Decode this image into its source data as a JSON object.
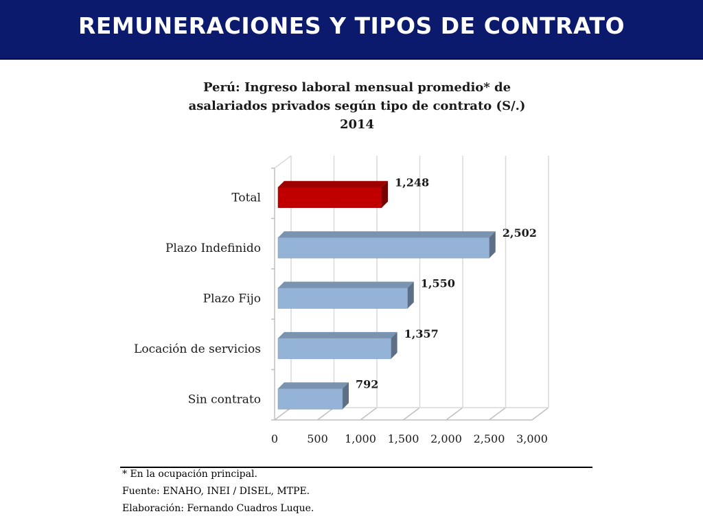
{
  "header": {
    "title": "REMUNERACIONES Y TIPOS DE CONTRATO"
  },
  "colors": {
    "header_bg": "#0c1a6e",
    "bar_default": "#95b3d7",
    "bar_highlight": "#c00000"
  },
  "chart_data": {
    "type": "bar",
    "orientation": "horizontal",
    "title_lines": [
      "Perú: Ingreso laboral mensual promedio* de",
      "asalariados privados según tipo de contrato (S/.)",
      "2014"
    ],
    "categories": [
      "Total",
      "Plazo Indefinido",
      "Plazo Fijo",
      "Locación de servicios",
      "Sin contrato"
    ],
    "values": [
      1248,
      2502,
      1550,
      1357,
      792
    ],
    "value_labels": [
      "1,248",
      "2,502",
      "1,550",
      "1,357",
      "792"
    ],
    "highlight": "Total",
    "xlim": [
      0,
      3000
    ],
    "x_ticks": [
      0,
      500,
      1000,
      1500,
      2000,
      2500,
      3000
    ],
    "x_tick_labels": [
      "0",
      "500",
      "1,000",
      "1,500",
      "2,000",
      "2,500",
      "3,000"
    ],
    "grid": true,
    "style": "3d"
  },
  "footer": {
    "note": "* En la ocupación principal.",
    "source": "Fuente: ENAHO, INEI / DISEL, MTPE.",
    "author": "Elaboración: Fernando Cuadros Luque."
  }
}
